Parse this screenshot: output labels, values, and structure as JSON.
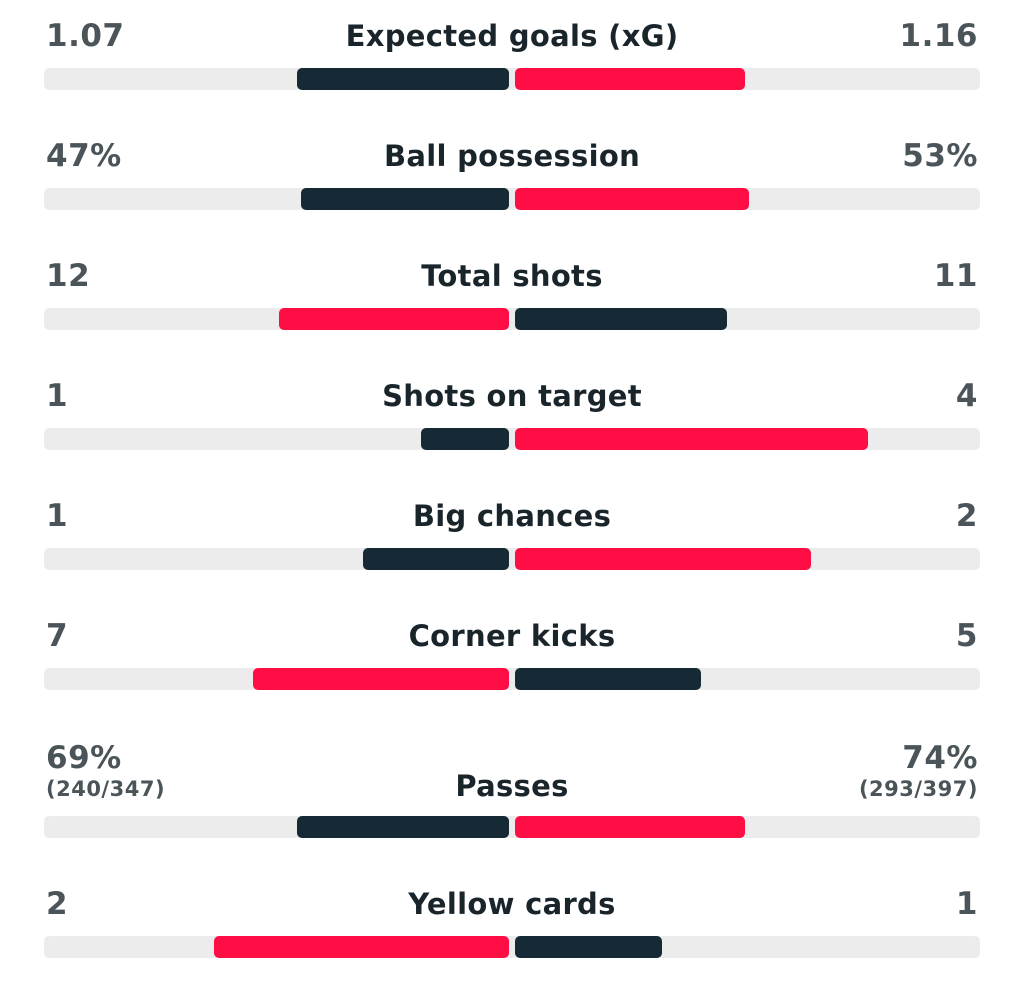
{
  "colors": {
    "dark_bar": "#162a35",
    "red_bar": "#ff0d45",
    "track": "#ececec",
    "value_text": "#4b5459",
    "title_text": "#1a252b"
  },
  "stats": [
    {
      "name": "Expected goals (xG)",
      "left": "1.07",
      "right": "1.16",
      "left_fraction": 0.48,
      "right_fraction": 0.52,
      "left_color": "dark",
      "right_color": "red"
    },
    {
      "name": "Ball possession",
      "left": "47%",
      "right": "53%",
      "left_fraction": 0.47,
      "right_fraction": 0.53,
      "left_color": "dark",
      "right_color": "red"
    },
    {
      "name": "Total shots",
      "left": "12",
      "right": "11",
      "left_fraction": 0.52,
      "right_fraction": 0.48,
      "left_color": "red",
      "right_color": "dark"
    },
    {
      "name": "Shots on target",
      "left": "1",
      "right": "4",
      "left_fraction": 0.2,
      "right_fraction": 0.8,
      "left_color": "dark",
      "right_color": "red"
    },
    {
      "name": "Big chances",
      "left": "1",
      "right": "2",
      "left_fraction": 0.33,
      "right_fraction": 0.67,
      "left_color": "dark",
      "right_color": "red"
    },
    {
      "name": "Corner kicks",
      "left": "7",
      "right": "5",
      "left_fraction": 0.58,
      "right_fraction": 0.42,
      "left_color": "red",
      "right_color": "dark"
    },
    {
      "name": "Passes",
      "left": "69%",
      "left_sub": "(240/347)",
      "right": "74%",
      "right_sub": "(293/397)",
      "left_fraction": 0.48,
      "right_fraction": 0.52,
      "left_color": "dark",
      "right_color": "red"
    },
    {
      "name": "Yellow cards",
      "left": "2",
      "right": "1",
      "left_fraction": 0.667,
      "right_fraction": 0.333,
      "left_color": "red",
      "right_color": "dark"
    }
  ]
}
